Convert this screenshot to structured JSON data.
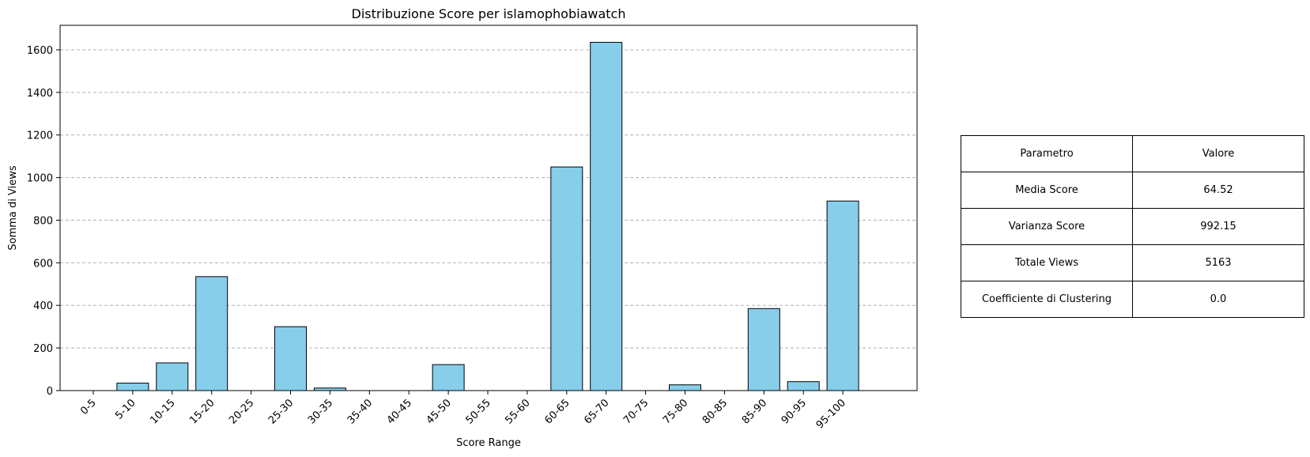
{
  "chart_data": {
    "type": "bar",
    "title": "Distribuzione Score per islamophobiawatch",
    "xlabel": "Score Range",
    "ylabel": "Somma di Views",
    "categories": [
      "0-5",
      "5-10",
      "10-15",
      "15-20",
      "20-25",
      "25-30",
      "30-35",
      "35-40",
      "40-45",
      "45-50",
      "50-55",
      "55-60",
      "60-65",
      "65-70",
      "70-75",
      "75-80",
      "80-85",
      "85-90",
      "90-95",
      "95-100"
    ],
    "values": [
      0,
      35,
      130,
      535,
      0,
      300,
      12,
      0,
      0,
      122,
      0,
      0,
      1050,
      1635,
      0,
      27,
      0,
      385,
      42,
      890
    ],
    "ylim": [
      0,
      1715
    ],
    "yticks": [
      0,
      200,
      400,
      600,
      800,
      1000,
      1200,
      1400,
      1600
    ],
    "grid": "y-dashed",
    "bar_color": "#87ceeb",
    "edge_color": "#000000"
  },
  "table": {
    "header": [
      "Parametro",
      "Valore"
    ],
    "rows": [
      [
        "Media Score",
        "64.52"
      ],
      [
        "Varianza Score",
        "992.15"
      ],
      [
        "Totale Views",
        "5163"
      ],
      [
        "Coefficiente di Clustering",
        "0.0"
      ]
    ]
  }
}
